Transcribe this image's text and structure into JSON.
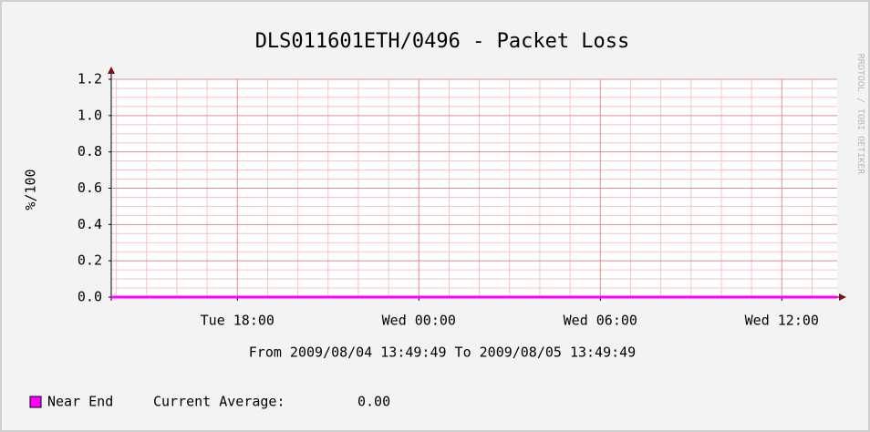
{
  "chart_data": {
    "type": "line",
    "title": "DLS011601ETH/0496 - Packet Loss",
    "subtitle": "From 2009/08/04 13:49:49 To 2009/08/05 13:49:49",
    "y_label": "%/100",
    "watermark": "RRDTOOL / TOBI OETIKER",
    "x": [
      "2009-08-04T13:49:49",
      "2009-08-05T13:49:49"
    ],
    "series": [
      {
        "name": "Near End",
        "color": "#ff00ff",
        "values": [
          0,
          0
        ],
        "stat_label": "Current Average:",
        "stat_value": "0.00"
      }
    ],
    "xlim": [
      "2009-08-04T13:49:49",
      "2009-08-05T13:49:49"
    ],
    "xticks": [
      {
        "value": "2009-08-04T18:00:00",
        "label": "Tue 18:00"
      },
      {
        "value": "2009-08-05T00:00:00",
        "label": "Wed 00:00"
      },
      {
        "value": "2009-08-05T06:00:00",
        "label": "Wed 06:00"
      },
      {
        "value": "2009-08-05T12:00:00",
        "label": "Wed 12:00"
      }
    ],
    "xminorticks": [
      "2009-08-04T14:00:00",
      "2009-08-04T15:00:00",
      "2009-08-04T16:00:00",
      "2009-08-04T17:00:00",
      "2009-08-04T19:00:00",
      "2009-08-04T20:00:00",
      "2009-08-04T21:00:00",
      "2009-08-04T22:00:00",
      "2009-08-04T23:00:00",
      "2009-08-05T01:00:00",
      "2009-08-05T02:00:00",
      "2009-08-05T03:00:00",
      "2009-08-05T04:00:00",
      "2009-08-05T05:00:00",
      "2009-08-05T07:00:00",
      "2009-08-05T08:00:00",
      "2009-08-05T09:00:00",
      "2009-08-05T10:00:00",
      "2009-08-05T11:00:00",
      "2009-08-05T13:00:00"
    ],
    "ylim": [
      0,
      1.2
    ],
    "yticks": [
      {
        "value": 0,
        "label": "0.0"
      },
      {
        "value": 0.2,
        "label": "0.2"
      },
      {
        "value": 0.4,
        "label": "0.4"
      },
      {
        "value": 0.6,
        "label": "0.6"
      },
      {
        "value": 0.8,
        "label": "0.8"
      },
      {
        "value": 1.0,
        "label": "1.0"
      },
      {
        "value": 1.2,
        "label": "1.2"
      }
    ],
    "yminorticks": [
      0.05,
      0.1,
      0.15,
      0.25,
      0.3,
      0.35,
      0.45,
      0.5,
      0.55,
      0.65,
      0.7,
      0.75,
      0.85,
      0.9,
      0.95,
      1.05,
      1.1,
      1.15
    ],
    "grid": true
  }
}
